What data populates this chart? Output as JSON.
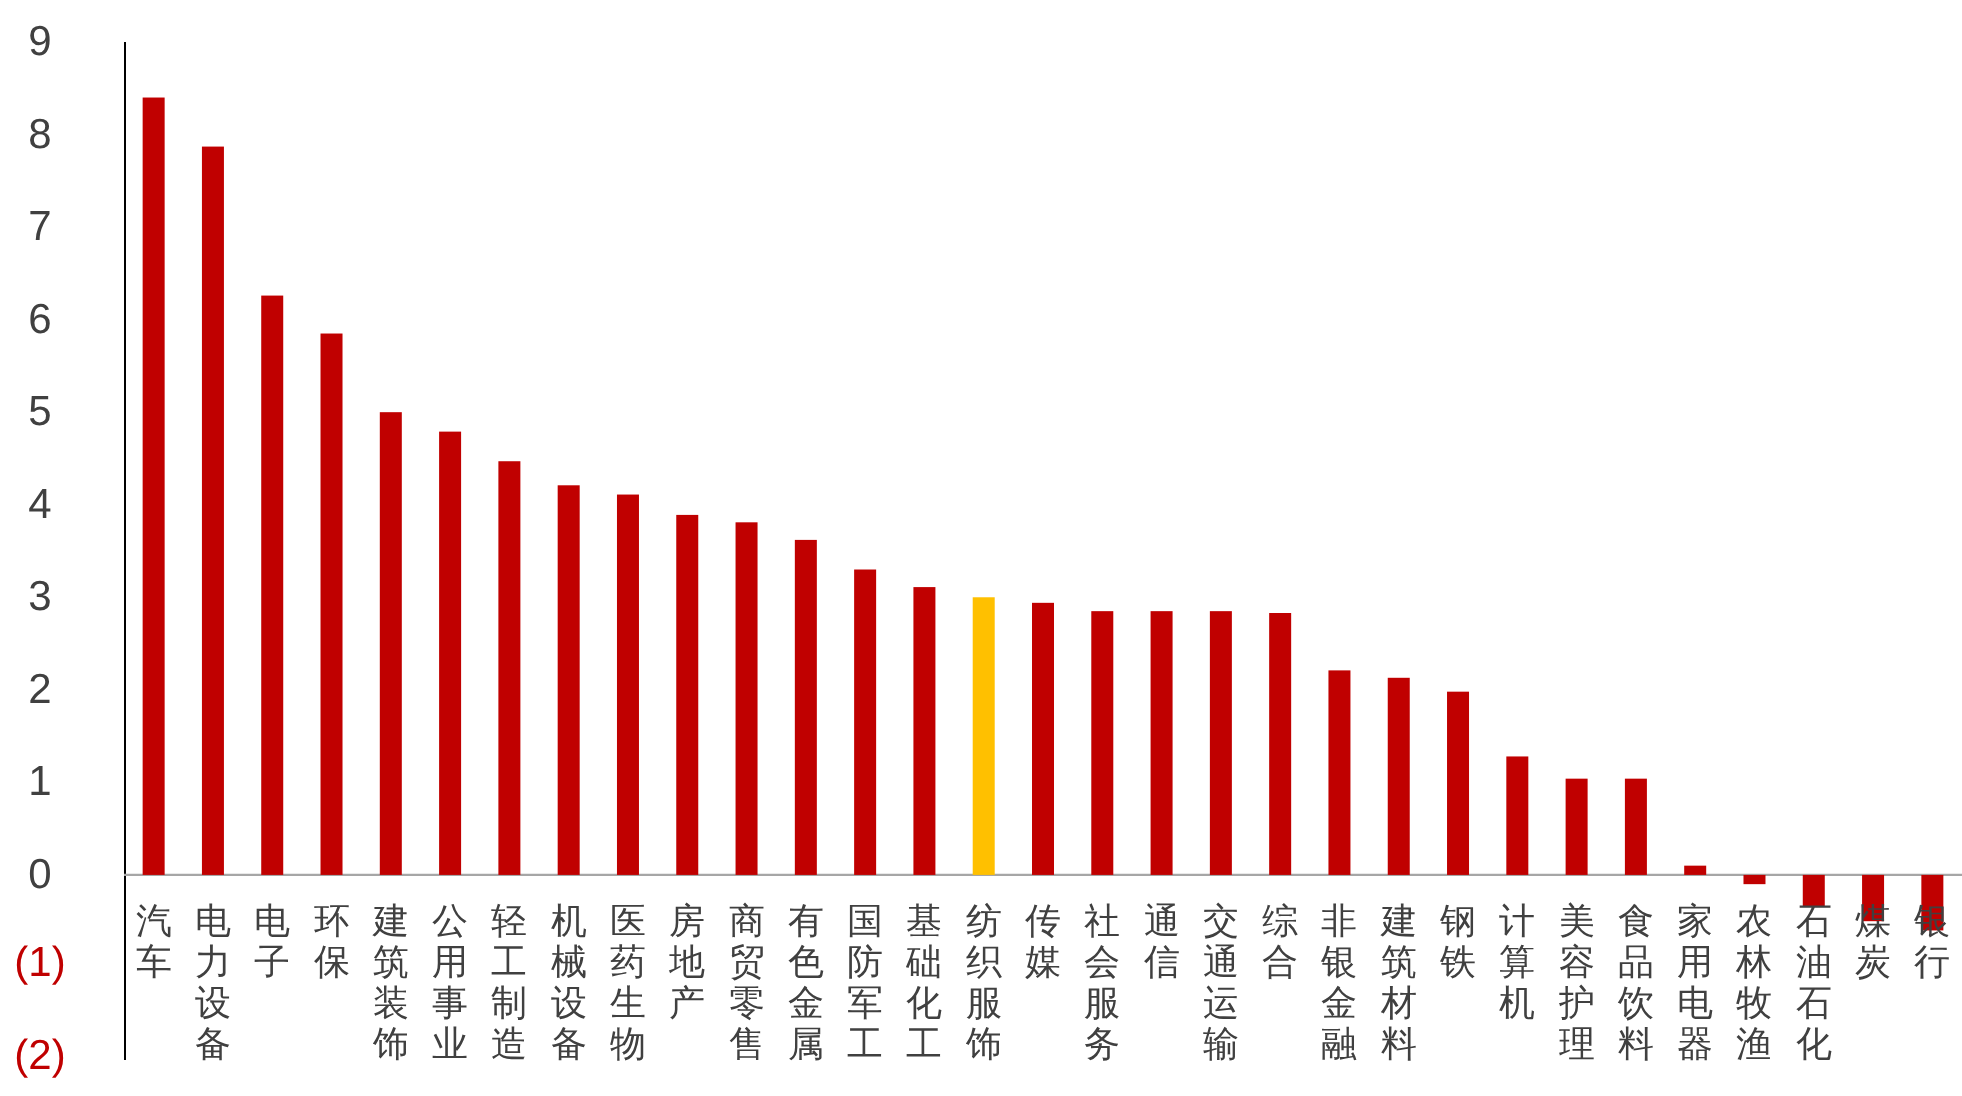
{
  "chart_data": {
    "type": "bar",
    "categories": [
      "汽车",
      "电力设备",
      "电子",
      "环保",
      "建筑装饰",
      "公用事业",
      "轻工制造",
      "机械设备",
      "医药生物",
      "房地产",
      "商贸零售",
      "有色金属",
      "国防军工",
      "基础化工",
      "纺织服饰",
      "传媒",
      "社会服务",
      "通信",
      "交通运输",
      "综合",
      "非银金融",
      "建筑材料",
      "钢铁",
      "计算机",
      "美容护理",
      "食品饮料",
      "家用电器",
      "农林牧渔",
      "石油石化",
      "煤炭",
      "银行"
    ],
    "values": [
      8.4,
      7.87,
      6.26,
      5.85,
      5.0,
      4.79,
      4.47,
      4.21,
      4.11,
      3.89,
      3.81,
      3.62,
      3.3,
      3.11,
      3.0,
      2.94,
      2.85,
      2.85,
      2.85,
      2.83,
      2.21,
      2.13,
      1.98,
      1.28,
      1.04,
      1.04,
      0.1,
      -0.1,
      -0.34,
      -0.5,
      -0.6
    ],
    "colors": [
      "#c00000",
      "#c00000",
      "#c00000",
      "#c00000",
      "#c00000",
      "#c00000",
      "#c00000",
      "#c00000",
      "#c00000",
      "#c00000",
      "#c00000",
      "#c00000",
      "#c00000",
      "#c00000",
      "#ffc000",
      "#c00000",
      "#c00000",
      "#c00000",
      "#c00000",
      "#c00000",
      "#c00000",
      "#c00000",
      "#c00000",
      "#c00000",
      "#c00000",
      "#c00000",
      "#c00000",
      "#c00000",
      "#c00000",
      "#c00000",
      "#c00000"
    ],
    "ylim": [
      -2,
      9
    ],
    "yticks": [
      {
        "value": -2,
        "label": "(2)"
      },
      {
        "value": -1,
        "label": "(1)"
      },
      0,
      1,
      2,
      3,
      4,
      5,
      6,
      7,
      8,
      9
    ],
    "grid": false
  }
}
